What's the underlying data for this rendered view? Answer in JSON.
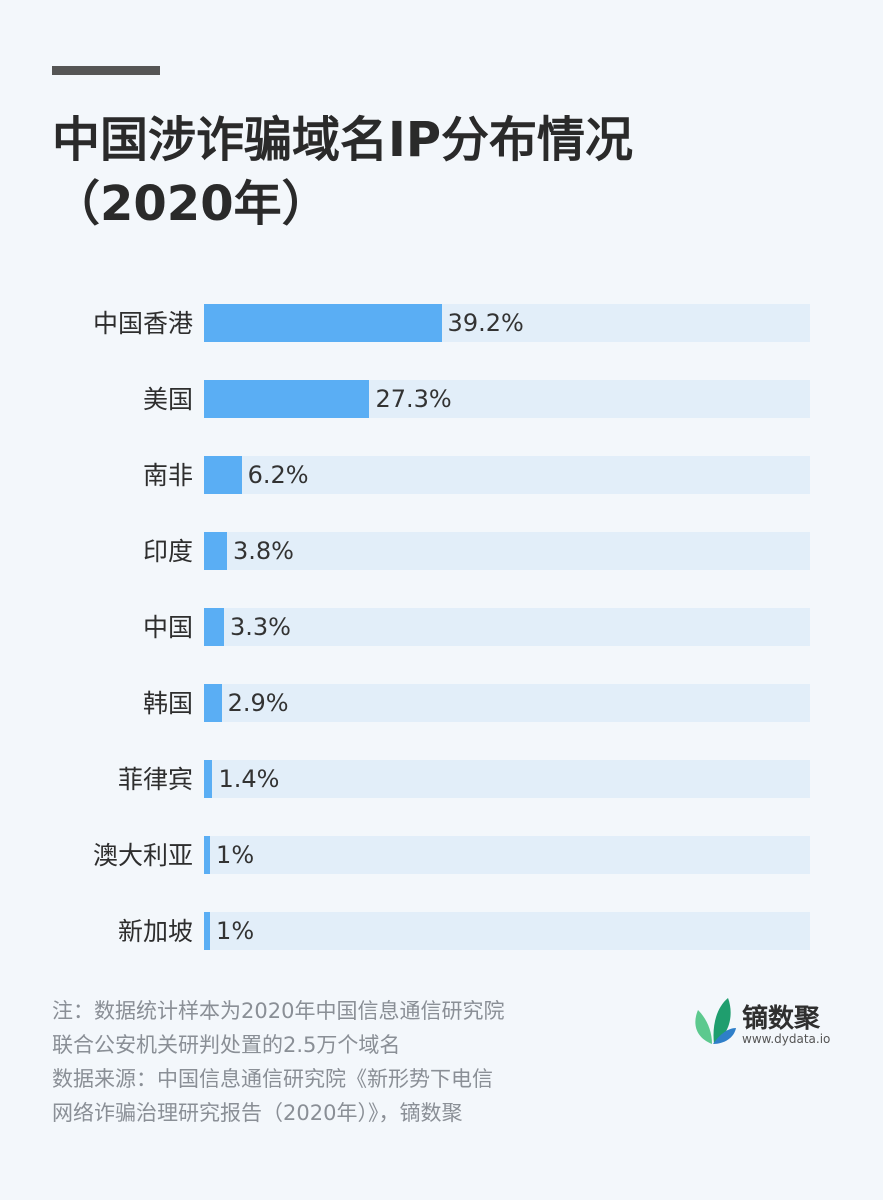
{
  "title_lines": [
    "中国涉诈骗域名IP分布情况",
    "（2020年）"
  ],
  "chart_data": {
    "type": "bar",
    "orientation": "horizontal",
    "title": "中国涉诈骗域名IP分布情况（2020年）",
    "categories": [
      "中国香港",
      "美国",
      "南非",
      "印度",
      "中国",
      "韩国",
      "菲律宾",
      "澳大利亚",
      "新加坡"
    ],
    "values": [
      39.2,
      27.3,
      6.2,
      3.8,
      3.3,
      2.9,
      1.4,
      1,
      1
    ],
    "value_labels": [
      "39.2%",
      "27.3%",
      "6.2%",
      "3.8%",
      "3.3%",
      "2.9%",
      "1.4%",
      "1%",
      "1%"
    ],
    "xlim": [
      0,
      100
    ],
    "unit": "%",
    "grid": false,
    "bar_color": "#5aaef4",
    "track_color": "#e2eef9"
  },
  "notes": [
    "注：数据统计样本为2020年中国信息通信研究院",
    "联合公安机关研判处置的2.5万个域名",
    "数据来源：中国信息通信研究院《新形势下电信",
    "网络诈骗治理研究报告（2020年）》，镝数聚"
  ],
  "logo": {
    "name": "镝数聚",
    "url": "www.dydata.io",
    "icon": "leaf-logo-icon",
    "colors": [
      "#1f9e6e",
      "#5cc98e",
      "#2f7fc9"
    ]
  }
}
